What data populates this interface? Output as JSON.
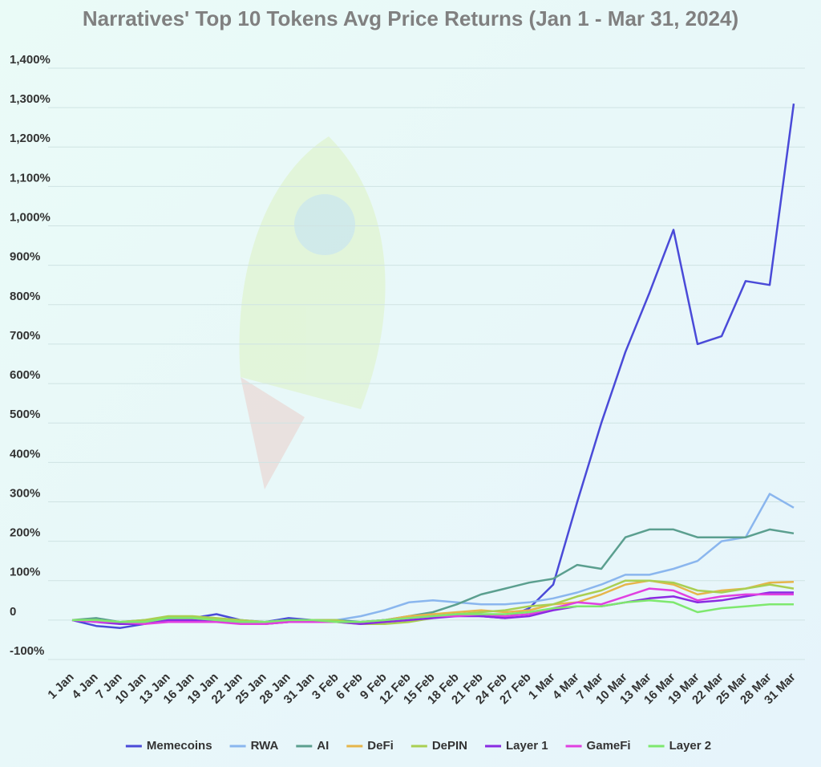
{
  "chart_data": {
    "type": "line",
    "title": "Narratives' Top 10 Tokens Avg Price Returns (Jan 1 - Mar 31, 2024)",
    "categories": [
      "1 Jan",
      "4 Jan",
      "7 Jan",
      "10 Jan",
      "13 Jan",
      "16 Jan",
      "19 Jan",
      "22 Jan",
      "25 Jan",
      "28 Jan",
      "31 Jan",
      "3 Feb",
      "6 Feb",
      "9 Feb",
      "12 Feb",
      "15 Feb",
      "18 Feb",
      "21 Feb",
      "24 Feb",
      "27 Feb",
      "1 Mar",
      "4 Mar",
      "7 Mar",
      "10 Mar",
      "13 Mar",
      "16 Mar",
      "19 Mar",
      "22 Mar",
      "25 Mar",
      "28 Mar",
      "31 Mar"
    ],
    "series": [
      {
        "name": "Memecoins",
        "color": "#4a4ad8",
        "values": [
          0,
          -15,
          -20,
          -10,
          5,
          5,
          15,
          0,
          -5,
          5,
          0,
          -5,
          -5,
          0,
          5,
          10,
          15,
          10,
          5,
          30,
          90,
          300,
          500,
          680,
          830,
          990,
          700,
          720,
          860,
          850,
          1310
        ]
      },
      {
        "name": "RWA",
        "color": "#8ab6ee",
        "values": [
          0,
          0,
          -5,
          -5,
          0,
          0,
          -5,
          -5,
          -10,
          -5,
          0,
          0,
          10,
          25,
          45,
          50,
          45,
          40,
          40,
          45,
          55,
          70,
          90,
          115,
          115,
          130,
          150,
          200,
          210,
          320,
          285
        ]
      },
      {
        "name": "AI",
        "color": "#5b9f8f",
        "values": [
          0,
          5,
          -5,
          0,
          5,
          5,
          0,
          -5,
          -10,
          0,
          0,
          0,
          -5,
          0,
          10,
          20,
          40,
          65,
          80,
          95,
          105,
          140,
          130,
          210,
          230,
          230,
          210,
          210,
          210,
          230,
          220
        ]
      },
      {
        "name": "DeFi",
        "color": "#e6b54a",
        "values": [
          0,
          0,
          -10,
          -5,
          5,
          5,
          0,
          -5,
          -10,
          -5,
          0,
          -5,
          -10,
          0,
          10,
          15,
          20,
          25,
          20,
          25,
          40,
          45,
          65,
          90,
          100,
          90,
          65,
          75,
          80,
          95,
          97
        ]
      },
      {
        "name": "DePIN",
        "color": "#a9cf52",
        "values": [
          0,
          0,
          -5,
          0,
          10,
          10,
          5,
          0,
          -5,
          0,
          0,
          0,
          -10,
          -10,
          -5,
          5,
          15,
          20,
          25,
          35,
          40,
          60,
          75,
          100,
          100,
          95,
          75,
          70,
          80,
          90,
          80
        ]
      },
      {
        "name": "Layer 1",
        "color": "#8a2be2",
        "values": [
          0,
          -5,
          -10,
          -10,
          0,
          0,
          -5,
          -5,
          -10,
          -5,
          -5,
          -5,
          -10,
          -5,
          0,
          5,
          10,
          10,
          5,
          10,
          25,
          35,
          35,
          45,
          55,
          60,
          45,
          50,
          60,
          70,
          70
        ]
      },
      {
        "name": "GameFi",
        "color": "#e040e0",
        "values": [
          0,
          -5,
          -5,
          -10,
          -5,
          -5,
          -5,
          -10,
          -10,
          -5,
          -5,
          -5,
          -5,
          0,
          5,
          10,
          10,
          15,
          10,
          15,
          30,
          45,
          40,
          60,
          80,
          75,
          50,
          60,
          65,
          65,
          65
        ]
      },
      {
        "name": "Layer 2",
        "color": "#7ee86e",
        "values": [
          0,
          0,
          -5,
          -5,
          5,
          5,
          0,
          -5,
          -5,
          0,
          0,
          -5,
          -5,
          0,
          5,
          10,
          15,
          15,
          15,
          20,
          30,
          35,
          35,
          45,
          50,
          45,
          20,
          30,
          35,
          40,
          40
        ]
      }
    ],
    "ylim": [
      -100,
      1400
    ],
    "yticks": [
      {
        "value": -100,
        "label": "-100%"
      },
      0,
      {
        "value": 100,
        "label": "100%"
      },
      {
        "value": 200,
        "label": "200%"
      },
      {
        "value": 300,
        "label": "300%"
      },
      {
        "value": 400,
        "label": "400%"
      },
      {
        "value": 500,
        "label": "500%"
      },
      {
        "value": 600,
        "label": "600%"
      },
      {
        "value": 700,
        "label": "700%"
      },
      {
        "value": 800,
        "label": "800%"
      },
      {
        "value": 900,
        "label": "900%"
      },
      {
        "value": 1000,
        "label": "1,000%"
      },
      {
        "value": 1100,
        "label": "1,100%"
      },
      {
        "value": 1200,
        "label": "1,200%"
      },
      {
        "value": 1300,
        "label": "1,300%"
      },
      {
        "value": 1400,
        "label": "1,400%"
      }
    ],
    "grid": true,
    "legend": "bottom"
  }
}
